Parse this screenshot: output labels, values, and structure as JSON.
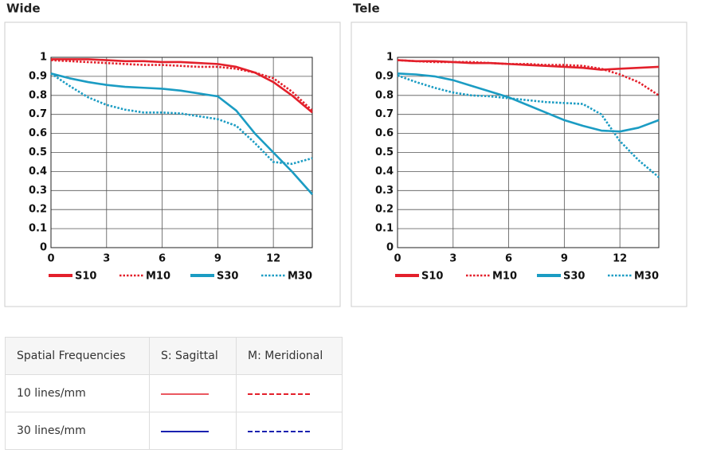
{
  "chart_data": [
    {
      "type": "line",
      "title": "Wide",
      "x": [
        0,
        1,
        2,
        3,
        4,
        5,
        6,
        7,
        8,
        9,
        10,
        11,
        12,
        13,
        14.1
      ],
      "xlim": [
        0,
        14.1
      ],
      "xticks": [
        0,
        3,
        6,
        9,
        12
      ],
      "ylim": [
        0,
        1
      ],
      "yticks": [
        0,
        0.1,
        0.2,
        0.3,
        0.4,
        0.5,
        0.6,
        0.7,
        0.8,
        0.9,
        1
      ],
      "grid": true,
      "series": [
        {
          "name": "S10",
          "color": "#e3202b",
          "line_style": "solid",
          "values": [
            0.99,
            0.99,
            0.99,
            0.985,
            0.98,
            0.98,
            0.975,
            0.975,
            0.97,
            0.965,
            0.95,
            0.92,
            0.87,
            0.8,
            0.71
          ]
        },
        {
          "name": "M10",
          "color": "#e3202b",
          "line_style": "dotted",
          "values": [
            0.985,
            0.98,
            0.975,
            0.97,
            0.965,
            0.96,
            0.96,
            0.955,
            0.95,
            0.95,
            0.94,
            0.92,
            0.89,
            0.82,
            0.72
          ]
        },
        {
          "name": "S30",
          "color": "#1b9cc3",
          "line_style": "solid",
          "values": [
            0.915,
            0.89,
            0.87,
            0.855,
            0.845,
            0.84,
            0.835,
            0.825,
            0.81,
            0.795,
            0.72,
            0.6,
            0.5,
            0.4,
            0.28
          ]
        },
        {
          "name": "M30",
          "color": "#1b9cc3",
          "line_style": "dotted",
          "values": [
            0.915,
            0.85,
            0.79,
            0.75,
            0.725,
            0.71,
            0.71,
            0.705,
            0.69,
            0.675,
            0.64,
            0.55,
            0.45,
            0.44,
            0.47
          ]
        }
      ]
    },
    {
      "type": "line",
      "title": "Tele",
      "x": [
        0,
        1,
        2,
        3,
        4,
        5,
        6,
        7,
        8,
        9,
        10,
        11,
        12,
        13,
        14.1
      ],
      "xlim": [
        0,
        14.1
      ],
      "xticks": [
        0,
        3,
        6,
        9,
        12
      ],
      "ylim": [
        0,
        1
      ],
      "yticks": [
        0,
        0.1,
        0.2,
        0.3,
        0.4,
        0.5,
        0.6,
        0.7,
        0.8,
        0.9,
        1
      ],
      "grid": true,
      "series": [
        {
          "name": "S10",
          "color": "#e3202b",
          "line_style": "solid",
          "values": [
            0.985,
            0.98,
            0.98,
            0.975,
            0.97,
            0.97,
            0.965,
            0.96,
            0.955,
            0.95,
            0.945,
            0.935,
            0.94,
            0.945,
            0.95
          ]
        },
        {
          "name": "M10",
          "color": "#e3202b",
          "line_style": "dotted",
          "values": [
            0.985,
            0.98,
            0.975,
            0.975,
            0.975,
            0.97,
            0.965,
            0.965,
            0.96,
            0.96,
            0.955,
            0.94,
            0.91,
            0.87,
            0.8
          ]
        },
        {
          "name": "S30",
          "color": "#1b9cc3",
          "line_style": "solid",
          "values": [
            0.915,
            0.91,
            0.9,
            0.88,
            0.85,
            0.82,
            0.79,
            0.75,
            0.71,
            0.67,
            0.64,
            0.615,
            0.61,
            0.63,
            0.67
          ]
        },
        {
          "name": "M30",
          "color": "#1b9cc3",
          "line_style": "dotted",
          "values": [
            0.905,
            0.87,
            0.84,
            0.815,
            0.8,
            0.795,
            0.785,
            0.775,
            0.765,
            0.76,
            0.755,
            0.7,
            0.56,
            0.46,
            0.37
          ]
        }
      ]
    }
  ],
  "table": {
    "header": [
      "Spatial Frequencies",
      "S: Sagittal",
      "M: Meridional"
    ],
    "rows": [
      [
        "10 lines/mm"
      ],
      [
        "30 lines/mm"
      ]
    ]
  }
}
